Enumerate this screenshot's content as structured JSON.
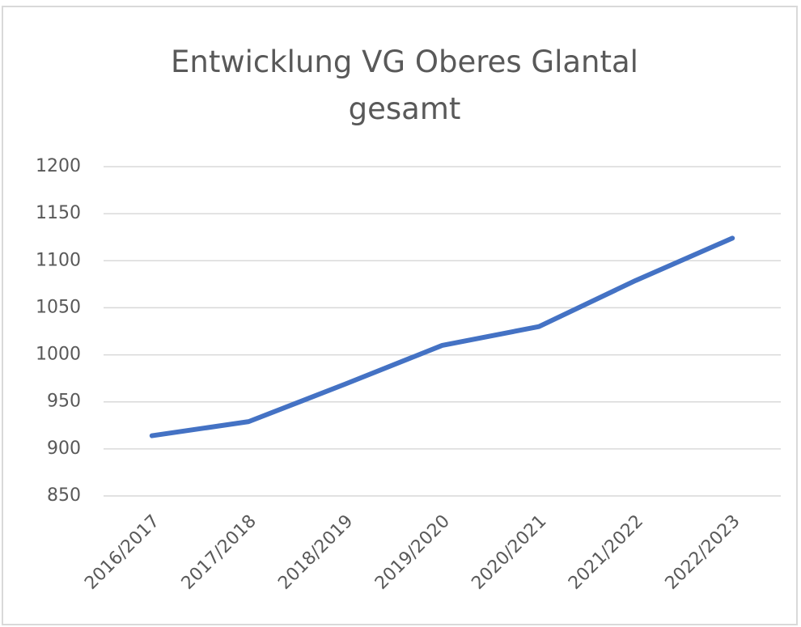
{
  "chart_data": {
    "type": "line",
    "title": "Entwicklung VG Oberes Glantal gesamt",
    "categories": [
      "2016/2017",
      "2017/2018",
      "2018/2019",
      "2019/2020",
      "2020/2021",
      "2021/2022",
      "2022/2023"
    ],
    "values": [
      914,
      929,
      969,
      1010,
      1030,
      1079,
      1124
    ],
    "color": "#4472c4",
    "ylim": [
      850,
      1200
    ],
    "yticks": [
      850,
      900,
      950,
      1000,
      1050,
      1100,
      1150,
      1200
    ],
    "grid": true
  }
}
